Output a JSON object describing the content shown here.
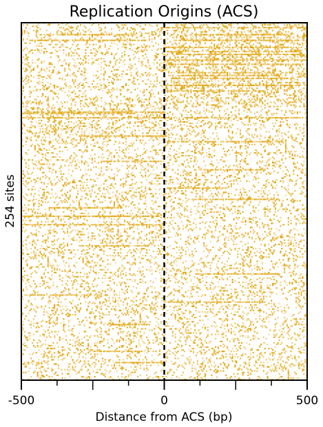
{
  "chart_data": {
    "type": "heatmap",
    "title": "Replication Origins (ACS)",
    "xlabel": "Distance from ACS (bp)",
    "ylabel": "254 sites",
    "xlim": [
      -500,
      500
    ],
    "x_ticks": [
      -500,
      0,
      500
    ],
    "x_tick_labels": [
      "-500",
      "0",
      "500"
    ],
    "x_minor_ticks": [
      -375,
      -250,
      -125,
      125,
      250,
      375
    ],
    "rows": 254,
    "center_line": {
      "x": 0,
      "style": "dashed"
    },
    "colors": {
      "signal": "#E0A000",
      "background": "#ffffff"
    },
    "grid": false,
    "legend": "none"
  }
}
